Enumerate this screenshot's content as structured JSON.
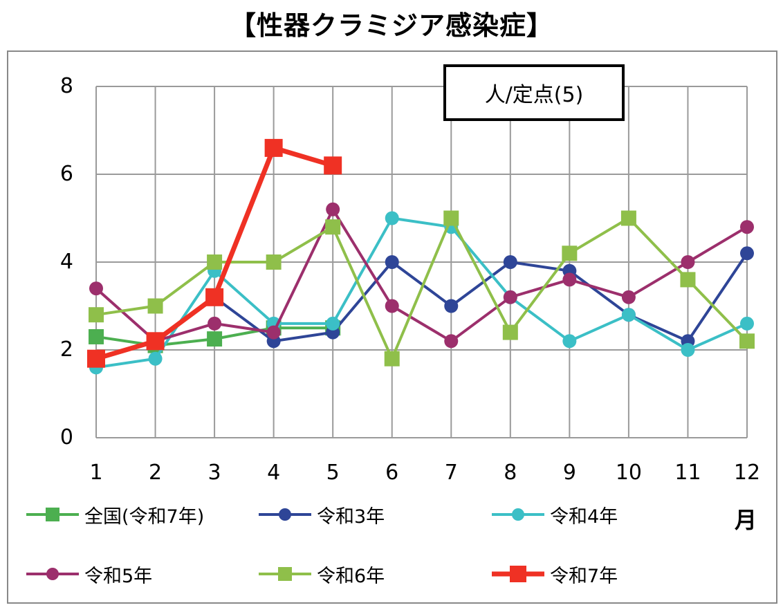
{
  "chart_data": {
    "type": "line",
    "title": "【性器クラミジア感染症】",
    "unit_label": "人/定点(5)",
    "xlabel": "月",
    "ylabel": "",
    "x": [
      1,
      2,
      3,
      4,
      5,
      6,
      7,
      8,
      9,
      10,
      11,
      12
    ],
    "ylim": [
      0,
      8
    ],
    "yticks": [
      0,
      2,
      4,
      6,
      8
    ],
    "grid": true,
    "legend_position": "bottom",
    "series": [
      {
        "name": "全国(令和7年)",
        "color": "#4caf50",
        "marker": "square",
        "values": [
          2.3,
          2.1,
          2.25,
          2.5,
          2.5,
          null,
          null,
          null,
          null,
          null,
          null,
          null
        ]
      },
      {
        "name": "令和3年",
        "color": "#2e4597",
        "marker": "circle",
        "values": [
          1.8,
          2.2,
          3.2,
          2.2,
          2.4,
          4.0,
          3.0,
          4.0,
          3.8,
          2.8,
          2.2,
          4.2
        ]
      },
      {
        "name": "令和4年",
        "color": "#3bbfc6",
        "marker": "circle",
        "values": [
          1.6,
          1.8,
          3.8,
          2.6,
          2.6,
          5.0,
          4.8,
          3.2,
          2.2,
          2.8,
          2.0,
          2.6
        ]
      },
      {
        "name": "令和5年",
        "color": "#9c2f6c",
        "marker": "circle",
        "values": [
          3.4,
          2.2,
          2.6,
          2.4,
          5.2,
          3.0,
          2.2,
          3.2,
          3.6,
          3.2,
          4.0,
          4.8
        ]
      },
      {
        "name": "令和6年",
        "color": "#8fbf4a",
        "marker": "square",
        "values": [
          2.8,
          3.0,
          4.0,
          4.0,
          4.8,
          1.8,
          5.0,
          2.4,
          4.2,
          5.0,
          3.6,
          2.2
        ]
      },
      {
        "name": "令和7年",
        "color": "#ef3124",
        "marker": "square",
        "values": [
          1.8,
          2.2,
          3.2,
          6.6,
          6.2,
          null,
          null,
          null,
          null,
          null,
          null,
          null
        ]
      }
    ]
  }
}
